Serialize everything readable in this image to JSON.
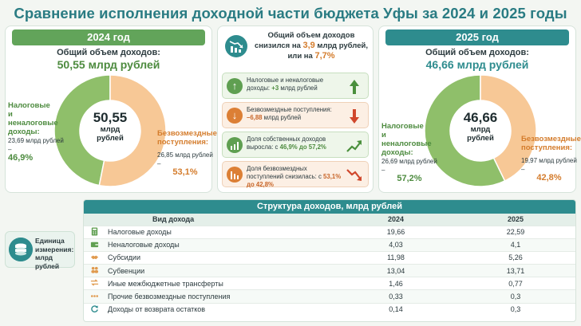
{
  "title": "Сравнение исполнения доходной части бюджета Уфы за 2024 и 2025 годы",
  "year2024": {
    "header": "2024 год",
    "total_label": "Общий объем доходов:",
    "total_value": "50,55 млрд рублей",
    "center_value": "50,55",
    "center_unit1": "млрд",
    "center_unit2": "рублей",
    "left_label1": "Налоговые",
    "left_label2": "и неналоговые",
    "left_label3": "доходы:",
    "left_amount": "23,69 млрд рублей –",
    "left_pct": "46,9%",
    "right_label1": "Безвозмездные",
    "right_label2": "поступления:",
    "right_amount": "26,85 млрд рублей –",
    "right_pct": "53,1%"
  },
  "year2025": {
    "header": "2025 год",
    "total_label": "Общий объем доходов:",
    "total_value": "46,66 млрд рублей",
    "center_value": "46,66",
    "center_unit1": "млрд",
    "center_unit2": "рублей",
    "left_label1": "Налоговые",
    "left_label2": "и неналоговые",
    "left_label3": "доходы:",
    "left_amount": "26,69 млрд рублей –",
    "left_pct": "57,2%",
    "right_label1": "Безвозмездные",
    "right_label2": "поступления:",
    "right_amount": "19,97 млрд рублей –",
    "right_pct": "42,8%"
  },
  "summary": {
    "line1": "Общий объем доходов",
    "line2a": "снизился на ",
    "line2num": "3,9",
    "line2b": " млрд рублей,",
    "line3a": "или на ",
    "line3num": "7,7%",
    "cards": [
      {
        "t1": "Налоговые и неналоговые",
        "t2a": "доходы: ",
        "t2h": "+3",
        "t2b": " млрд рублей",
        "tone": "g",
        "arrow_icon": "arrow-up-icon"
      },
      {
        "t1": "Безвозмездные поступления:",
        "t2a": "",
        "t2h": "–6,88",
        "t2b": " млрд рублей",
        "tone": "o",
        "arrow_icon": "arrow-down-icon"
      },
      {
        "t1": "Доля собственных доходов",
        "t2a": "выросла: с ",
        "t2h": "46,9% до 57,2%",
        "t2b": "",
        "tone": "g",
        "arrow_icon": "trend-up-icon"
      },
      {
        "t1": "Доля безвозмездных",
        "t2a": "поступлений снизилась: с ",
        "t2h": "53,1% до 42,8%",
        "t2b": "",
        "tone": "o",
        "arrow_icon": "trend-down-icon"
      }
    ]
  },
  "unit": {
    "l1": "Единица",
    "l2": "измерения:",
    "l3": "млрд рублей"
  },
  "colors": {
    "green": "#8fbf6a",
    "orange": "#f7c896",
    "teal": "#2e8c8e"
  },
  "chart_data": [
    {
      "type": "pie",
      "title": "2024 год",
      "categories": [
        "Налоговые и неналоговые доходы",
        "Безвозмездные поступления"
      ],
      "values": [
        23.69,
        26.85
      ],
      "percent": [
        46.9,
        53.1
      ]
    },
    {
      "type": "pie",
      "title": "2025 год",
      "categories": [
        "Налоговые и неналоговые доходы",
        "Безвозмездные поступления"
      ],
      "values": [
        26.69,
        19.97
      ],
      "percent": [
        57.2,
        42.8
      ]
    },
    {
      "type": "table",
      "title": "Структура доходов, млрд рублей",
      "columns": [
        "Вид дохода",
        "2024",
        "2025"
      ],
      "rows": [
        {
          "icon": "calculator-icon",
          "name": "Налоговые доходы",
          "v2024": "19,66",
          "v2025": "22,59"
        },
        {
          "icon": "wallet-icon",
          "name": "Неналоговые доходы",
          "v2024": "4,03",
          "v2025": "4,1"
        },
        {
          "icon": "handshake-icon",
          "name": "Субсидии",
          "v2024": "11,98",
          "v2025": "5,26"
        },
        {
          "icon": "people-icon",
          "name": "Субвенции",
          "v2024": "13,04",
          "v2025": "13,71"
        },
        {
          "icon": "transfer-icon",
          "name": "Иные межбюджетные трансферты",
          "v2024": "1,46",
          "v2025": "0,77"
        },
        {
          "icon": "dots-icon",
          "name": "Прочие безвозмездные поступления",
          "v2024": "0,33",
          "v2025": "0,3"
        },
        {
          "icon": "return-icon",
          "name": "Доходы от возврата остатков",
          "v2024": "0,14",
          "v2025": "0,3"
        }
      ]
    }
  ]
}
